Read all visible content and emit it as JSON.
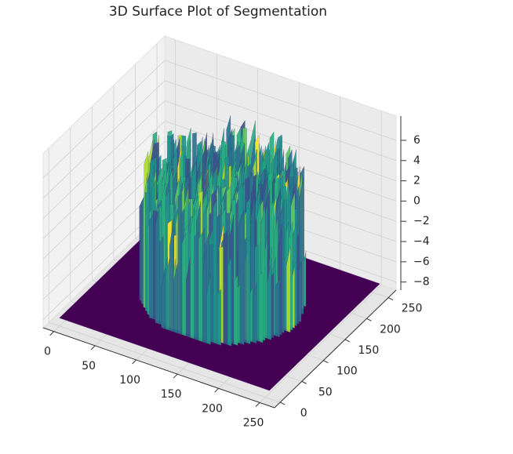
{
  "chart_data": {
    "type": "surface3d",
    "title": "3D Surface Plot of Segmentation",
    "xlim": [
      -13,
      268
    ],
    "ylim": [
      -13,
      268
    ],
    "zlim": [
      -8.8,
      8.4
    ],
    "xticks": [
      0,
      50,
      100,
      150,
      200,
      250
    ],
    "yticks": [
      0,
      50,
      100,
      150,
      200,
      250
    ],
    "zticks": [
      {
        "value": -8,
        "label": "−8"
      },
      {
        "value": -6,
        "label": "−6"
      },
      {
        "value": -4,
        "label": "−4"
      },
      {
        "value": -2,
        "label": "−2"
      },
      0,
      2,
      4,
      6
    ],
    "colormap": "viridis",
    "grid": true
  }
}
